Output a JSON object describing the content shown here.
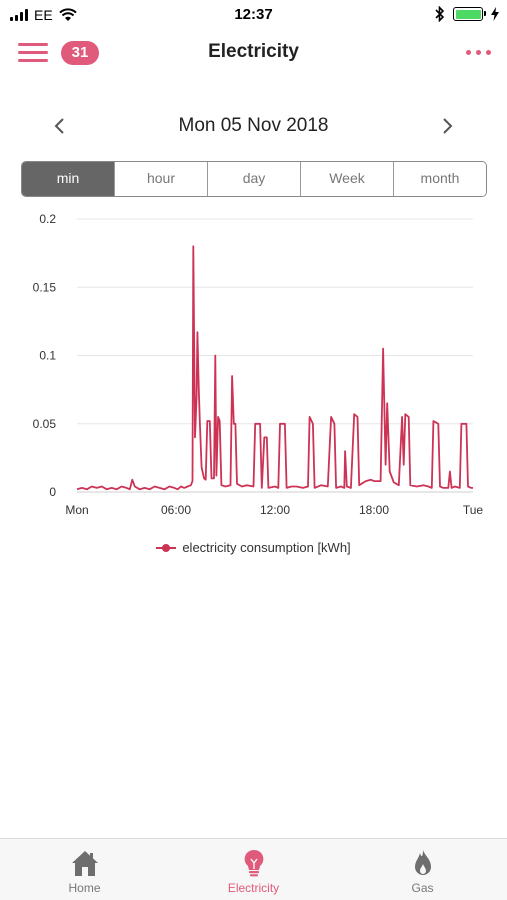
{
  "status_bar": {
    "carrier": "EE",
    "time": "12:37"
  },
  "nav": {
    "badge_count": "31",
    "title": "Electricity"
  },
  "date_nav": {
    "label": "Mon 05 Nov 2018"
  },
  "segments": [
    {
      "label": "min",
      "active": true
    },
    {
      "label": "hour",
      "active": false
    },
    {
      "label": "day",
      "active": false
    },
    {
      "label": "Week",
      "active": false
    },
    {
      "label": "month",
      "active": false
    }
  ],
  "tabs": [
    {
      "label": "Home",
      "icon": "home-icon",
      "active": false
    },
    {
      "label": "Electricity",
      "icon": "lightbulb-icon",
      "active": true
    },
    {
      "label": "Gas",
      "icon": "flame-icon",
      "active": false
    }
  ],
  "colors": {
    "accent": "#e05a7b",
    "series": "#cc3355",
    "grid": "#e6e6e6"
  },
  "chart_data": {
    "type": "line",
    "ylim": [
      0,
      0.2
    ],
    "xlim": [
      0,
      24
    ],
    "y_ticks": [
      0,
      0.05,
      0.1,
      0.15,
      0.2
    ],
    "y_tick_labels": [
      "0",
      "0.05",
      "0.1",
      "0.15",
      "0.2"
    ],
    "x_ticks": [
      0,
      6,
      12,
      18,
      24
    ],
    "x_tick_labels": [
      "Mon",
      "06:00",
      "12:00",
      "18:00",
      "Tue"
    ],
    "grid": true,
    "legend_position": "bottom",
    "series": [
      {
        "name": "electricity consumption [kWh]",
        "color": "#cc3355",
        "points": [
          [
            0.0,
            0.002
          ],
          [
            0.3,
            0.003
          ],
          [
            0.6,
            0.002
          ],
          [
            0.9,
            0.004
          ],
          [
            1.2,
            0.003
          ],
          [
            1.5,
            0.004
          ],
          [
            1.8,
            0.002
          ],
          [
            2.1,
            0.003
          ],
          [
            2.4,
            0.002
          ],
          [
            2.7,
            0.004
          ],
          [
            3.0,
            0.003
          ],
          [
            3.2,
            0.002
          ],
          [
            3.35,
            0.009
          ],
          [
            3.5,
            0.004
          ],
          [
            3.8,
            0.002
          ],
          [
            4.1,
            0.003
          ],
          [
            4.4,
            0.002
          ],
          [
            4.7,
            0.004
          ],
          [
            5.0,
            0.003
          ],
          [
            5.3,
            0.002
          ],
          [
            5.6,
            0.004
          ],
          [
            5.9,
            0.003
          ],
          [
            6.1,
            0.002
          ],
          [
            6.3,
            0.004
          ],
          [
            6.5,
            0.003
          ],
          [
            6.7,
            0.004
          ],
          [
            6.9,
            0.005
          ],
          [
            7.0,
            0.008
          ],
          [
            7.05,
            0.18
          ],
          [
            7.15,
            0.04
          ],
          [
            7.25,
            0.07
          ],
          [
            7.3,
            0.117
          ],
          [
            7.38,
            0.075
          ],
          [
            7.45,
            0.05
          ],
          [
            7.55,
            0.018
          ],
          [
            7.7,
            0.01
          ],
          [
            7.8,
            0.009
          ],
          [
            7.9,
            0.052
          ],
          [
            8.05,
            0.052
          ],
          [
            8.15,
            0.01
          ],
          [
            8.3,
            0.01
          ],
          [
            8.38,
            0.1
          ],
          [
            8.45,
            0.012
          ],
          [
            8.55,
            0.055
          ],
          [
            8.65,
            0.052
          ],
          [
            8.75,
            0.005
          ],
          [
            9.0,
            0.004
          ],
          [
            9.3,
            0.005
          ],
          [
            9.4,
            0.085
          ],
          [
            9.5,
            0.05
          ],
          [
            9.6,
            0.05
          ],
          [
            9.7,
            0.006
          ],
          [
            10.0,
            0.004
          ],
          [
            10.3,
            0.005
          ],
          [
            10.7,
            0.004
          ],
          [
            10.8,
            0.05
          ],
          [
            11.1,
            0.05
          ],
          [
            11.2,
            0.003
          ],
          [
            11.35,
            0.04
          ],
          [
            11.5,
            0.04
          ],
          [
            11.6,
            0.003
          ],
          [
            12.0,
            0.004
          ],
          [
            12.2,
            0.003
          ],
          [
            12.3,
            0.05
          ],
          [
            12.6,
            0.05
          ],
          [
            12.7,
            0.003
          ],
          [
            13.0,
            0.004
          ],
          [
            13.3,
            0.004
          ],
          [
            13.7,
            0.003
          ],
          [
            14.0,
            0.004
          ],
          [
            14.1,
            0.055
          ],
          [
            14.3,
            0.05
          ],
          [
            14.4,
            0.003
          ],
          [
            14.8,
            0.005
          ],
          [
            15.2,
            0.004
          ],
          [
            15.4,
            0.055
          ],
          [
            15.6,
            0.05
          ],
          [
            15.7,
            0.003
          ],
          [
            16.0,
            0.004
          ],
          [
            16.2,
            0.003
          ],
          [
            16.25,
            0.03
          ],
          [
            16.35,
            0.004
          ],
          [
            16.6,
            0.003
          ],
          [
            16.8,
            0.057
          ],
          [
            17.0,
            0.055
          ],
          [
            17.1,
            0.005
          ],
          [
            17.5,
            0.008
          ],
          [
            17.8,
            0.009
          ],
          [
            18.0,
            0.008
          ],
          [
            18.2,
            0.008
          ],
          [
            18.4,
            0.008
          ],
          [
            18.55,
            0.105
          ],
          [
            18.7,
            0.02
          ],
          [
            18.8,
            0.065
          ],
          [
            18.95,
            0.015
          ],
          [
            19.2,
            0.007
          ],
          [
            19.5,
            0.005
          ],
          [
            19.7,
            0.055
          ],
          [
            19.8,
            0.02
          ],
          [
            19.9,
            0.057
          ],
          [
            20.1,
            0.055
          ],
          [
            20.2,
            0.005
          ],
          [
            20.6,
            0.004
          ],
          [
            21.0,
            0.005
          ],
          [
            21.3,
            0.004
          ],
          [
            21.5,
            0.003
          ],
          [
            21.6,
            0.052
          ],
          [
            21.9,
            0.05
          ],
          [
            22.0,
            0.004
          ],
          [
            22.2,
            0.003
          ],
          [
            22.5,
            0.003
          ],
          [
            22.6,
            0.015
          ],
          [
            22.7,
            0.003
          ],
          [
            22.9,
            0.004
          ],
          [
            23.2,
            0.003
          ],
          [
            23.3,
            0.05
          ],
          [
            23.6,
            0.05
          ],
          [
            23.7,
            0.004
          ],
          [
            23.9,
            0.003
          ],
          [
            24.0,
            0.003
          ]
        ]
      }
    ]
  }
}
